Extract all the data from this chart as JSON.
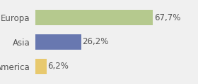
{
  "categories": [
    "Europa",
    "Asia",
    "America"
  ],
  "values": [
    67.7,
    26.2,
    6.2
  ],
  "labels": [
    "67,7%",
    "26,2%",
    "6,2%"
  ],
  "bar_colors": [
    "#b5c98e",
    "#6878b0",
    "#e8c96e"
  ],
  "background_color": "#f0f0f0",
  "xlim": [
    0,
    80
  ],
  "bar_height": 0.62,
  "label_fontsize": 8.5,
  "category_fontsize": 8.5
}
